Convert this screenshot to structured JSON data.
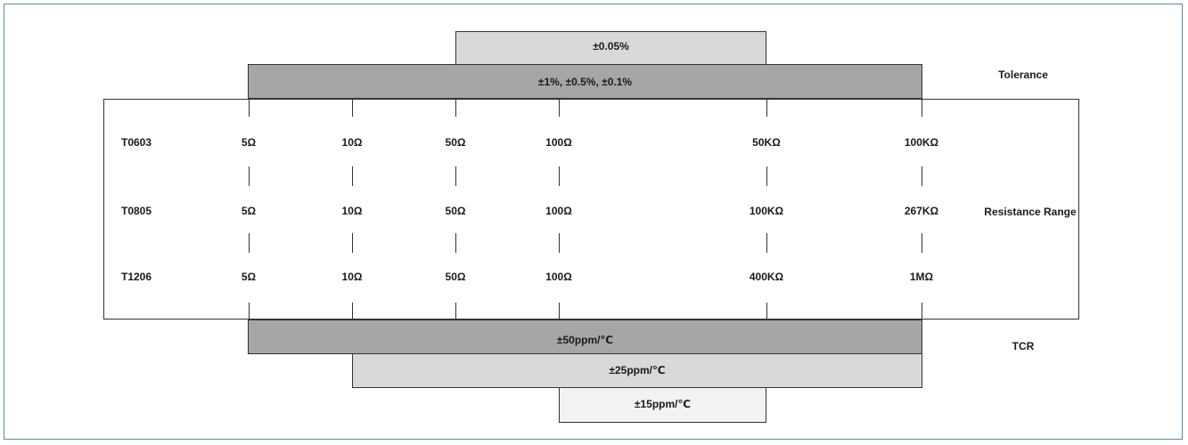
{
  "tolerance": {
    "label": "Tolerance",
    "top_bar": "±0.05%",
    "main_bar": "±1%, ±0.5%, ±0.1%"
  },
  "resistance": {
    "label": "Resistance Range",
    "rows": [
      {
        "name": "T0603",
        "values": [
          "5Ω",
          "10Ω",
          "50Ω",
          "100Ω",
          "50KΩ",
          "100KΩ"
        ]
      },
      {
        "name": "T0805",
        "values": [
          "5Ω",
          "10Ω",
          "50Ω",
          "100Ω",
          "100KΩ",
          "267KΩ"
        ]
      },
      {
        "name": "T1206",
        "values": [
          "5Ω",
          "10Ω",
          "50Ω",
          "100Ω",
          "400KΩ",
          "1MΩ"
        ]
      }
    ]
  },
  "tcr": {
    "label": "TCR",
    "bar_50": "±50ppm/℃",
    "bar_25": "±25ppm/℃",
    "bar_15": "±15ppm/℃"
  },
  "colors": {
    "bar_dark": "#a6a6a6",
    "bar_light": "#d9d9d9",
    "bar_lightest": "#f2f2f2",
    "frame": "#5a8aa6"
  }
}
